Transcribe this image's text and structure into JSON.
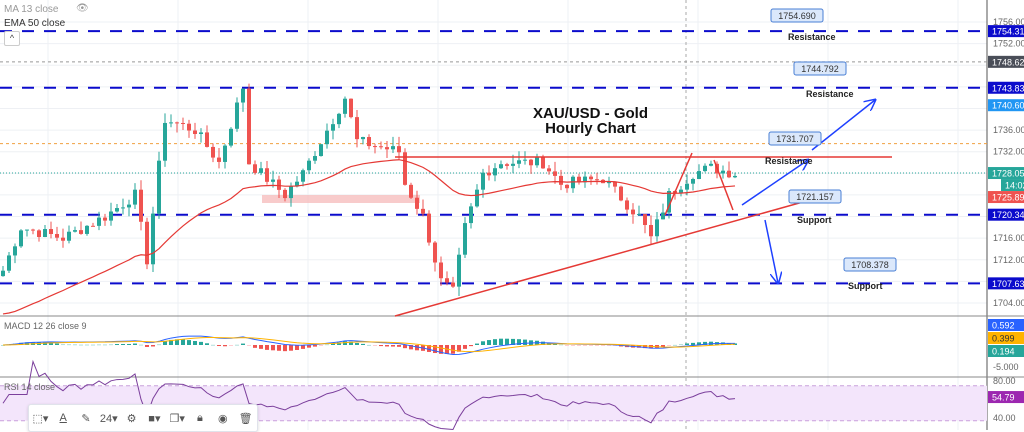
{
  "chart_data": {
    "type": "candlestick",
    "title": "XAU/USD - Gold\nHourly Chart",
    "title_lines": [
      "XAU/USD - Gold",
      "Hourly Chart"
    ],
    "ylim": [
      1700,
      1760
    ],
    "y_ticks": [
      "1756.000",
      "1752.000",
      "1736.000",
      "1732.000",
      "1716.000",
      "1712.000",
      "1704.000"
    ],
    "grid": true,
    "close_keypoints": [
      [
        0,
        1710
      ],
      [
        3,
        1718
      ],
      [
        10,
        1716
      ],
      [
        17,
        1720
      ],
      [
        22,
        1724
      ],
      [
        24,
        1712
      ],
      [
        27,
        1738
      ],
      [
        32,
        1736
      ],
      [
        36,
        1730
      ],
      [
        40,
        1744
      ],
      [
        41,
        1730
      ],
      [
        47,
        1724
      ],
      [
        50,
        1728
      ],
      [
        55,
        1738
      ],
      [
        57,
        1742
      ],
      [
        59,
        1734
      ],
      [
        66,
        1732
      ],
      [
        67,
        1726
      ],
      [
        70,
        1720
      ],
      [
        73,
        1708
      ],
      [
        75,
        1706
      ],
      [
        77,
        1718
      ],
      [
        80,
        1728
      ],
      [
        83,
        1730
      ],
      [
        90,
        1730
      ],
      [
        93,
        1726
      ],
      [
        100,
        1727
      ],
      [
        106,
        1720
      ],
      [
        108,
        1716
      ],
      [
        111,
        1724
      ],
      [
        115,
        1728
      ],
      [
        118,
        1729
      ],
      [
        122,
        1728
      ]
    ],
    "levels": {
      "dashed_blue": [
        1754.313,
        1743.832,
        1720.342,
        1707.637
      ],
      "crosshair": 1748.628,
      "orange_dotted": 1733.5,
      "last_price": 1728.05
    },
    "annotations": [
      {
        "value": "1754.690",
        "text": "Resistance"
      },
      {
        "value": "1744.792",
        "text": "Resistance"
      },
      {
        "value": "1731.707",
        "text": "Resistance"
      },
      {
        "value": "1721.157",
        "text": "Support"
      },
      {
        "value": "1708.378",
        "text": "Support"
      }
    ],
    "axis_badges": [
      {
        "text": "1754.313",
        "color": "#0b0bcc"
      },
      {
        "text": "1748.628",
        "color": "#4a4e58"
      },
      {
        "text": "1743.832",
        "color": "#0b0bcc"
      },
      {
        "text": "1740.603",
        "color": "#2196f3"
      },
      {
        "text": "1728.050",
        "color": "#26a69a"
      },
      {
        "text": "14:02",
        "color": "#26a69a"
      },
      {
        "text": "1725.897",
        "color": "#ef5350"
      },
      {
        "text": "1720.342",
        "color": "#0b0bcc"
      },
      {
        "text": "1707.637",
        "color": "#0b0bcc"
      }
    ],
    "indicators": {
      "ma": "MA 13 close",
      "ema": "EMA 50 close",
      "macd": {
        "label": "MACD 12 26 close 9",
        "badges": [
          {
            "text": "0.592",
            "color": "#2962ff"
          },
          {
            "text": "0.399",
            "color": "#ffb300"
          },
          {
            "text": "0.194",
            "color": "#26a69a"
          }
        ],
        "tick": "-5.000"
      },
      "rsi": {
        "label": "RSI 14 close",
        "badge": "54.79",
        "badge_color": "#9c27b0",
        "ticks": [
          "80.00",
          "40.00"
        ]
      }
    },
    "colors": {
      "up": "#26a69a",
      "down": "#ef5350",
      "ema": "#e53935",
      "levels": "#0b0bcc",
      "arrows": "#1e40ff"
    }
  },
  "toolbar": {
    "font_size": "24",
    "items": [
      "rect-icon",
      "text-icon",
      "pencil-icon",
      "size",
      "gear-icon",
      "fill-icon",
      "copy-icon",
      "lock-icon",
      "eye-icon",
      "trash-icon"
    ]
  },
  "collapse_glyph": "^"
}
